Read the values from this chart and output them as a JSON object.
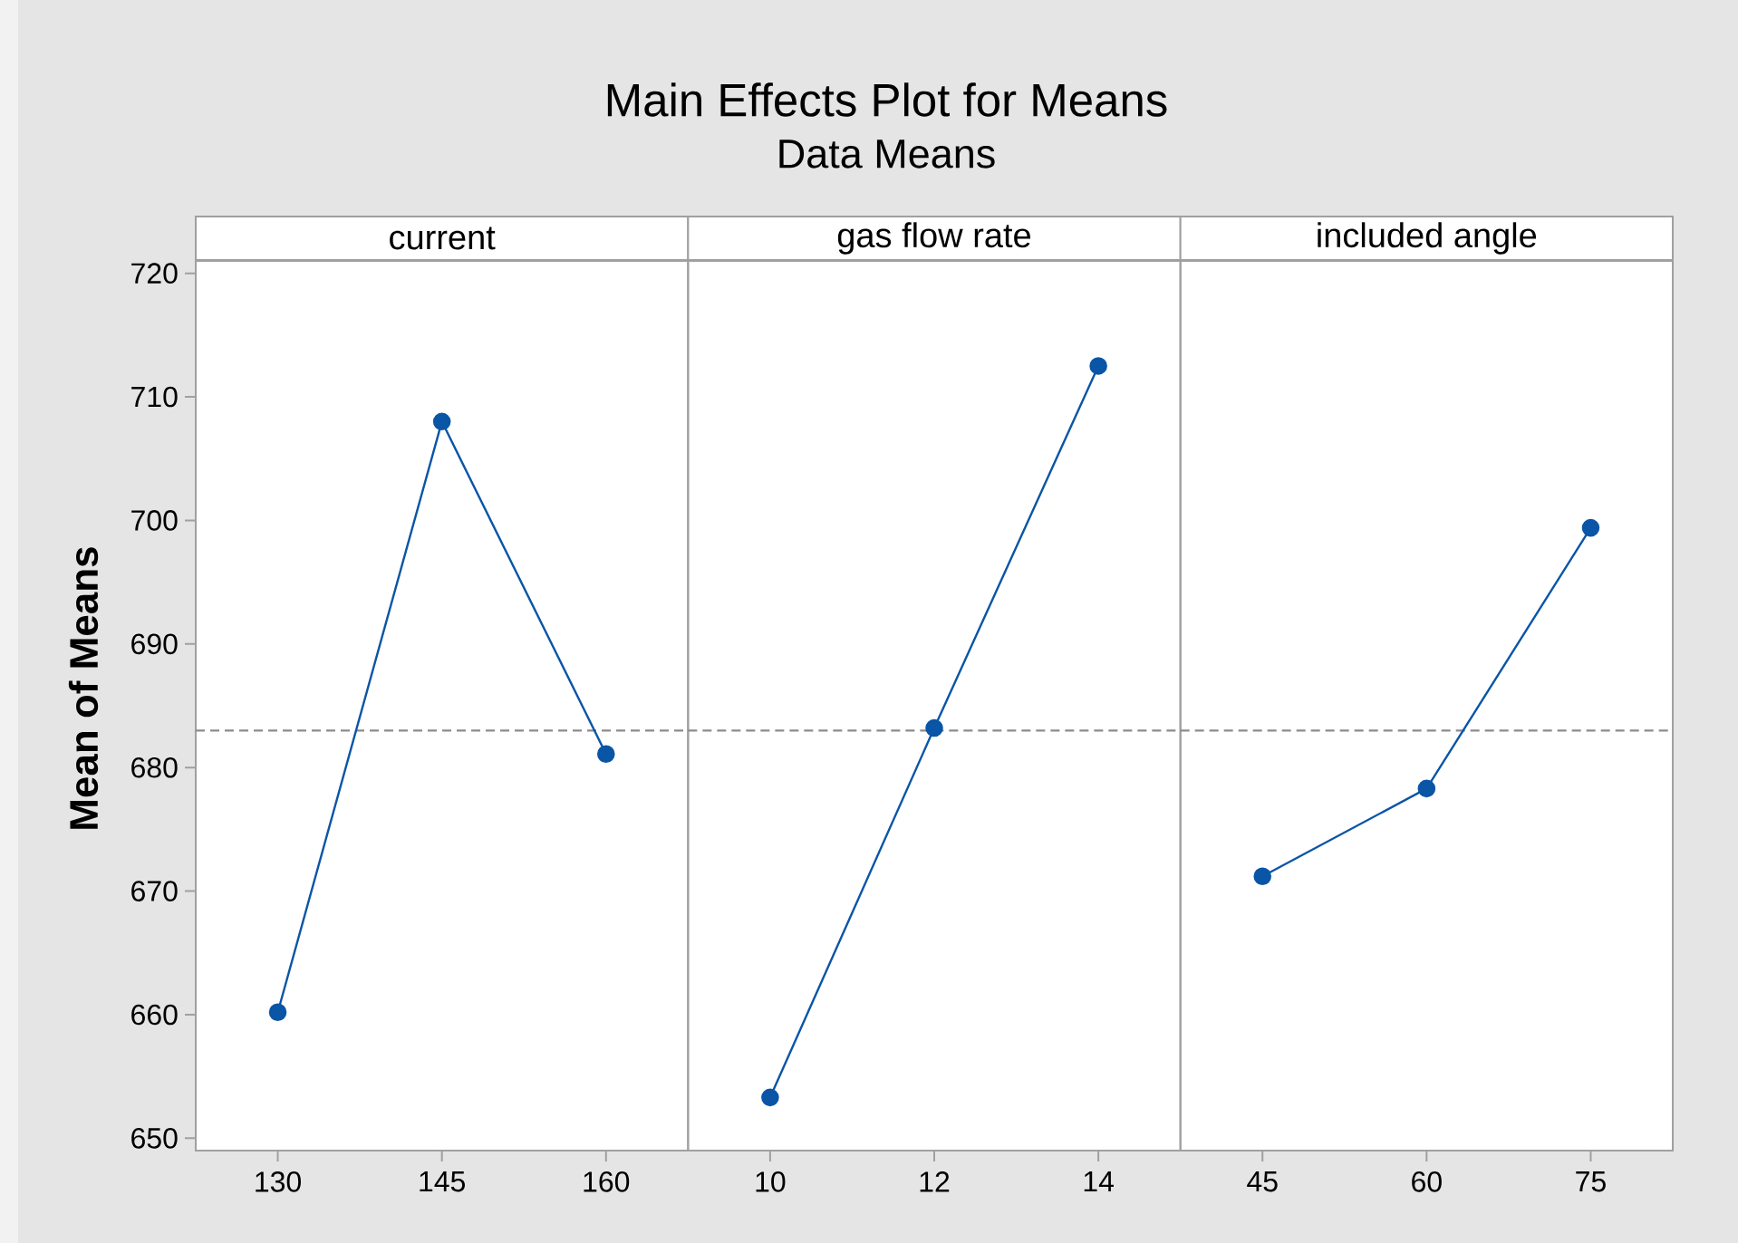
{
  "chart_data": [
    {
      "type": "line",
      "xlabel": "current",
      "ylabel": "Mean of Means",
      "categories": [
        "130",
        "145",
        "160"
      ],
      "values": [
        660.2,
        708.0,
        681.1
      ],
      "color": "#0a55a6",
      "marker": "circle",
      "line_style": "solid",
      "ylim": [
        649,
        721
      ],
      "yticks": [
        650,
        660,
        670,
        680,
        690,
        700,
        710,
        720
      ],
      "ref_lines": [
        {
          "axis": "y",
          "value": 683.0,
          "color": "#8c8c8c",
          "line_style": "dashed"
        }
      ]
    },
    {
      "type": "line",
      "title": "Main Effects Plot for Means",
      "subtitle": "Data Means",
      "xlabel": "gas flow rate",
      "categories": [
        "10",
        "12",
        "14"
      ],
      "values": [
        653.3,
        683.2,
        712.5
      ],
      "color": "#0a55a6",
      "marker": "circle",
      "line_style": "solid",
      "ylim": [
        649,
        721
      ],
      "yticks": [
        650,
        660,
        670,
        680,
        690,
        700,
        710,
        720
      ],
      "tick_labels": "x",
      "ref_lines": [
        {
          "axis": "y",
          "value": 683.0,
          "color": "#8c8c8c",
          "line_style": "dashed"
        }
      ]
    },
    {
      "type": "line",
      "xlabel": "included angle",
      "categories": [
        "45",
        "60",
        "75"
      ],
      "values": [
        671.2,
        678.3,
        699.4
      ],
      "color": "#0a55a6",
      "marker": "circle",
      "line_style": "solid",
      "ylim": [
        649,
        721
      ],
      "yticks": [
        650,
        660,
        670,
        680,
        690,
        700,
        710,
        720
      ],
      "tick_labels": "x",
      "ref_lines": [
        {
          "axis": "y",
          "value": 683.0,
          "color": "#8c8c8c",
          "line_style": "dashed"
        }
      ]
    }
  ]
}
